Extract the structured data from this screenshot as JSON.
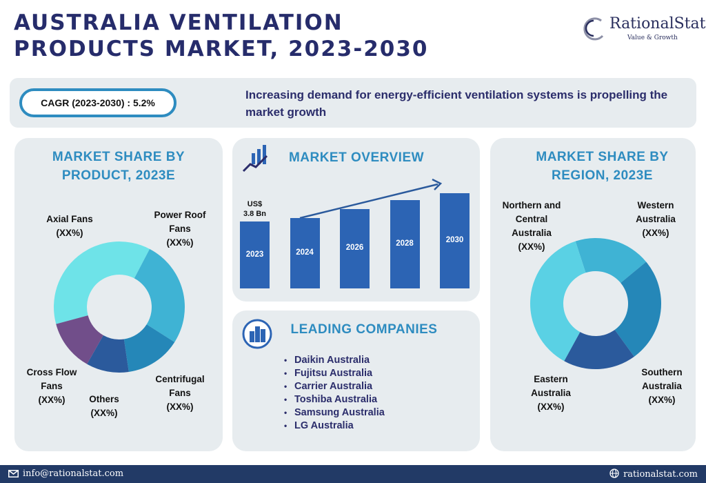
{
  "header": {
    "title_line1": "AUSTRALIA VENTILATION",
    "title_line2": "PRODUCTS MARKET, 2023-2030",
    "logo_name": "RationalStat",
    "logo_tagline": "Value & Growth"
  },
  "banner": {
    "cagr": "CAGR (2023-2030) : 5.2%",
    "text": "Increasing demand for energy-efficient ventilation systems is propelling the market growth"
  },
  "cards": {
    "product_title_line1": "MARKET SHARE BY",
    "product_title_line2": "PRODUCT, 2023E",
    "overview_title": "MARKET OVERVIEW",
    "companies_title": "LEADING COMPANIES",
    "region_title_line1": "MARKET SHARE BY",
    "region_title_line2": "REGION, 2023E"
  },
  "companies": [
    "Daikin Australia",
    "Fujitsu Australia",
    "Carrier Australia",
    "Toshiba Australia",
    "Samsung Australia",
    "LG Australia"
  ],
  "footer": {
    "email": "info@rationalstat.com",
    "website": "rationalstat.com"
  },
  "colors": {
    "title": "#262c6b",
    "accent": "#2e8cc0",
    "bar": "#2c64b4",
    "card_bg": "#e7ecef",
    "footer_bg": "#223a66"
  },
  "chart_data": [
    {
      "type": "pie",
      "variant": "donut",
      "title": "MARKET SHARE BY PRODUCT, 2023E",
      "categories": [
        "Axial Fans",
        "Power Roof Fans",
        "Centrifugal Fans",
        "Others",
        "Cross Flow Fans"
      ],
      "value_labels": [
        "(XX%)",
        "(XX%)",
        "(XX%)",
        "(XX%)",
        "(XX%)"
      ],
      "values": [
        35,
        25,
        13,
        10,
        12
      ],
      "colors": [
        "#6ee3e8",
        "#3fb3d4",
        "#2587b8",
        "#2b5a9c",
        "#714e8a"
      ]
    },
    {
      "type": "bar",
      "title": "MARKET OVERVIEW",
      "categories": [
        "2023",
        "2024",
        "2026",
        "2028",
        "2030"
      ],
      "values": [
        3.8,
        4.0,
        4.5,
        5.0,
        5.4
      ],
      "data_labels": [
        "US$\n3.8 Bn",
        "",
        "",
        "",
        ""
      ],
      "trend_arrow": true
    },
    {
      "type": "pie",
      "variant": "donut",
      "title": "MARKET SHARE BY REGION, 2023E",
      "categories": [
        "Western Australia",
        "Southern Australia",
        "Eastern Australia",
        "Northern and Central Australia"
      ],
      "value_labels": [
        "(XX%)",
        "(XX%)",
        "(XX%)",
        "(XX%)"
      ],
      "values": [
        19,
        26,
        18,
        37
      ],
      "colors": [
        "#3fb3d4",
        "#2587b8",
        "#2b5a9c",
        "#5ad1e4"
      ]
    }
  ]
}
